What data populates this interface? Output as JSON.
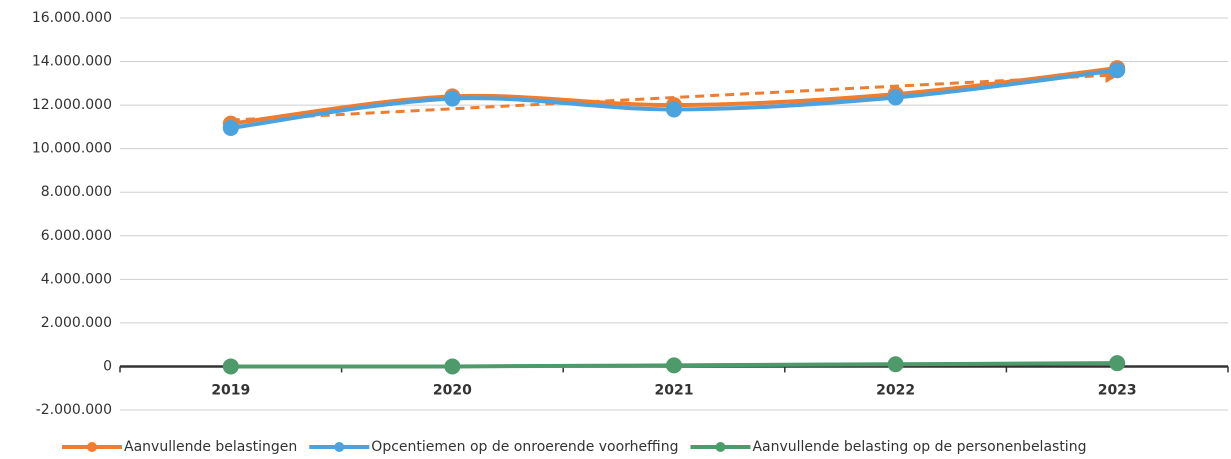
{
  "chart_data": {
    "type": "line",
    "categories": [
      "2019",
      "2020",
      "2021",
      "2022",
      "2023"
    ],
    "series": [
      {
        "name": "Aanvullende belastingen",
        "color": "#ed7d31",
        "values": [
          11150000,
          12400000,
          12000000,
          12500000,
          13700000
        ],
        "trendline": true
      },
      {
        "name": "Opcentiemen op de onroerende voorheffing",
        "color": "#4aa3df",
        "values": [
          10950000,
          12300000,
          11800000,
          12350000,
          13600000
        ]
      },
      {
        "name": "Aanvullende belasting op de personenbelasting",
        "color": "#4e9a6a",
        "values": [
          0,
          0,
          50000,
          100000,
          150000
        ]
      }
    ],
    "ylim": [
      -2000000,
      16000000
    ],
    "yticks": [
      {
        "value": -2000000,
        "label": "-2.000.000"
      },
      0,
      {
        "value": 2000000,
        "label": "2.000.000"
      },
      {
        "value": 4000000,
        "label": "4.000.000"
      },
      {
        "value": 6000000,
        "label": "6.000.000"
      },
      {
        "value": 8000000,
        "label": "8.000.000"
      },
      {
        "value": 10000000,
        "label": "10.000.000"
      },
      {
        "value": 12000000,
        "label": "12.000.000"
      },
      {
        "value": 14000000,
        "label": "14.000.000"
      },
      {
        "value": 16000000,
        "label": "16.000.000"
      }
    ],
    "grid": true,
    "smooth": true,
    "legend": "bottom"
  }
}
